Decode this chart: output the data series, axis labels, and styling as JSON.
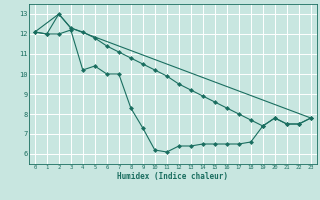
{
  "xlabel": "Humidex (Indice chaleur)",
  "bg_color": "#c8e6e0",
  "grid_color": "#b0d8d0",
  "line_color": "#1a6e60",
  "xlim": [
    -0.5,
    23.5
  ],
  "ylim": [
    5.5,
    13.5
  ],
  "xticks": [
    0,
    1,
    2,
    3,
    4,
    5,
    6,
    7,
    8,
    9,
    10,
    11,
    12,
    13,
    14,
    15,
    16,
    17,
    18,
    19,
    20,
    21,
    22,
    23
  ],
  "yticks": [
    6,
    7,
    8,
    9,
    10,
    11,
    12,
    13
  ],
  "line1_x": [
    0,
    1,
    2,
    3,
    4,
    5,
    6,
    7,
    8,
    9,
    10,
    11,
    12,
    13,
    14,
    15,
    16,
    17,
    18,
    19,
    20,
    21,
    22,
    23
  ],
  "line1_y": [
    12.1,
    12.0,
    12.0,
    12.2,
    10.2,
    10.4,
    10.0,
    10.0,
    8.3,
    7.3,
    6.2,
    6.1,
    6.4,
    6.4,
    6.5,
    6.5,
    6.5,
    6.5,
    6.6,
    7.4,
    7.8,
    7.5,
    7.5,
    7.8
  ],
  "line2_x": [
    0,
    1,
    2,
    3,
    4,
    5,
    6,
    7,
    8,
    9,
    10,
    11,
    12,
    13,
    14,
    15,
    16,
    17,
    18,
    19,
    20,
    21,
    22,
    23
  ],
  "line2_y": [
    12.1,
    12.0,
    13.0,
    12.3,
    12.1,
    11.8,
    11.4,
    11.1,
    10.8,
    10.5,
    10.2,
    9.9,
    9.5,
    9.2,
    8.9,
    8.6,
    8.3,
    8.0,
    7.7,
    7.4,
    7.8,
    7.5,
    7.5,
    7.8
  ],
  "line3_x": [
    0,
    2,
    3,
    23
  ],
  "line3_y": [
    12.1,
    13.0,
    12.3,
    7.8
  ],
  "marker_size": 2.5,
  "linewidth": 0.8
}
